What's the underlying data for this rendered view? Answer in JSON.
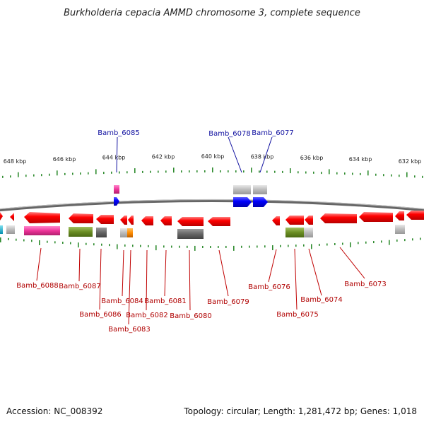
{
  "title": "Burkholderia cepacia AMMD chromosome 3, complete sequence",
  "footer": {
    "accession": "Accession: NC_008392",
    "summary": "Topology: circular; Length: 1,281,472 bp; Genes: 1,018"
  },
  "ticks": [
    {
      "label": "648 kbp"
    },
    {
      "label": "646 kbp"
    },
    {
      "label": "644 kbp"
    },
    {
      "label": "642 kbp"
    },
    {
      "label": "640 kbp"
    },
    {
      "label": "638 kbp"
    },
    {
      "label": "636 kbp"
    },
    {
      "label": "634 kbp"
    },
    {
      "label": "632 kbp"
    }
  ],
  "genes_top": [
    {
      "label": "Bamb_6085",
      "color": "#1010a0"
    },
    {
      "label": "Bamb_6078",
      "color": "#1010a0"
    },
    {
      "label": "Bamb_6077",
      "color": "#1010a0"
    }
  ],
  "genes_bottom": [
    {
      "label": "Bamb_6088"
    },
    {
      "label": "Bamb_6087"
    },
    {
      "label": "Bamb_6086"
    },
    {
      "label": "Bamb_6084"
    },
    {
      "label": "Bamb_6083"
    },
    {
      "label": "Bamb_6082"
    },
    {
      "label": "Bamb_6081"
    },
    {
      "label": "Bamb_6080"
    },
    {
      "label": "Bamb_6079"
    },
    {
      "label": "Bamb_6076"
    },
    {
      "label": "Bamb_6075"
    },
    {
      "label": "Bamb_6074"
    },
    {
      "label": "Bamb_6073"
    }
  ],
  "colors": {
    "forward_arrow": "#0000ff",
    "reverse_arrow": "#ff0000",
    "backbone": "#888888",
    "tick": "#2e8b2e",
    "label_blue": "#1010a0",
    "label_red": "#b00000",
    "cog_gray": "#bbbbbb",
    "cog_darkgray": "#666666",
    "cog_magenta": "#ee3399",
    "cog_olive": "#6b8e23",
    "cog_orange": "#ff8c00",
    "cog_cyan": "#00bcd4"
  }
}
